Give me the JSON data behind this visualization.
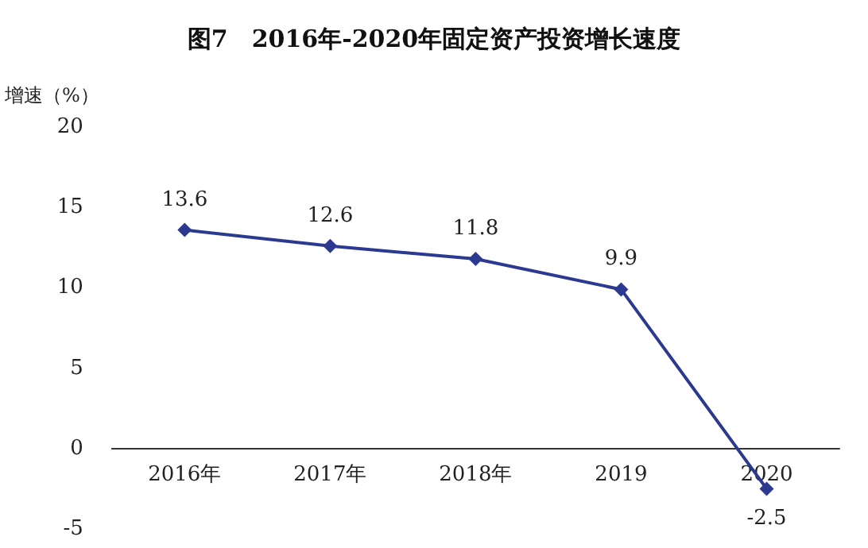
{
  "chart_data": {
    "type": "line",
    "title": "图7　2016年-2020年固定资产投资增长速度",
    "ylabel": "增速（%）",
    "categories": [
      "2016年",
      "2017年",
      "2018年",
      "2019",
      "2020"
    ],
    "series": [
      {
        "color": "#2b3990",
        "values": [
          13.6,
          12.6,
          11.8,
          9.9,
          -2.5
        ]
      }
    ],
    "ylim": [
      -5,
      20
    ],
    "yticks": [
      -5,
      0,
      5,
      10,
      15,
      20
    ],
    "grid": false,
    "marker": "diamond",
    "line_style": "solid",
    "data_labels": true
  }
}
